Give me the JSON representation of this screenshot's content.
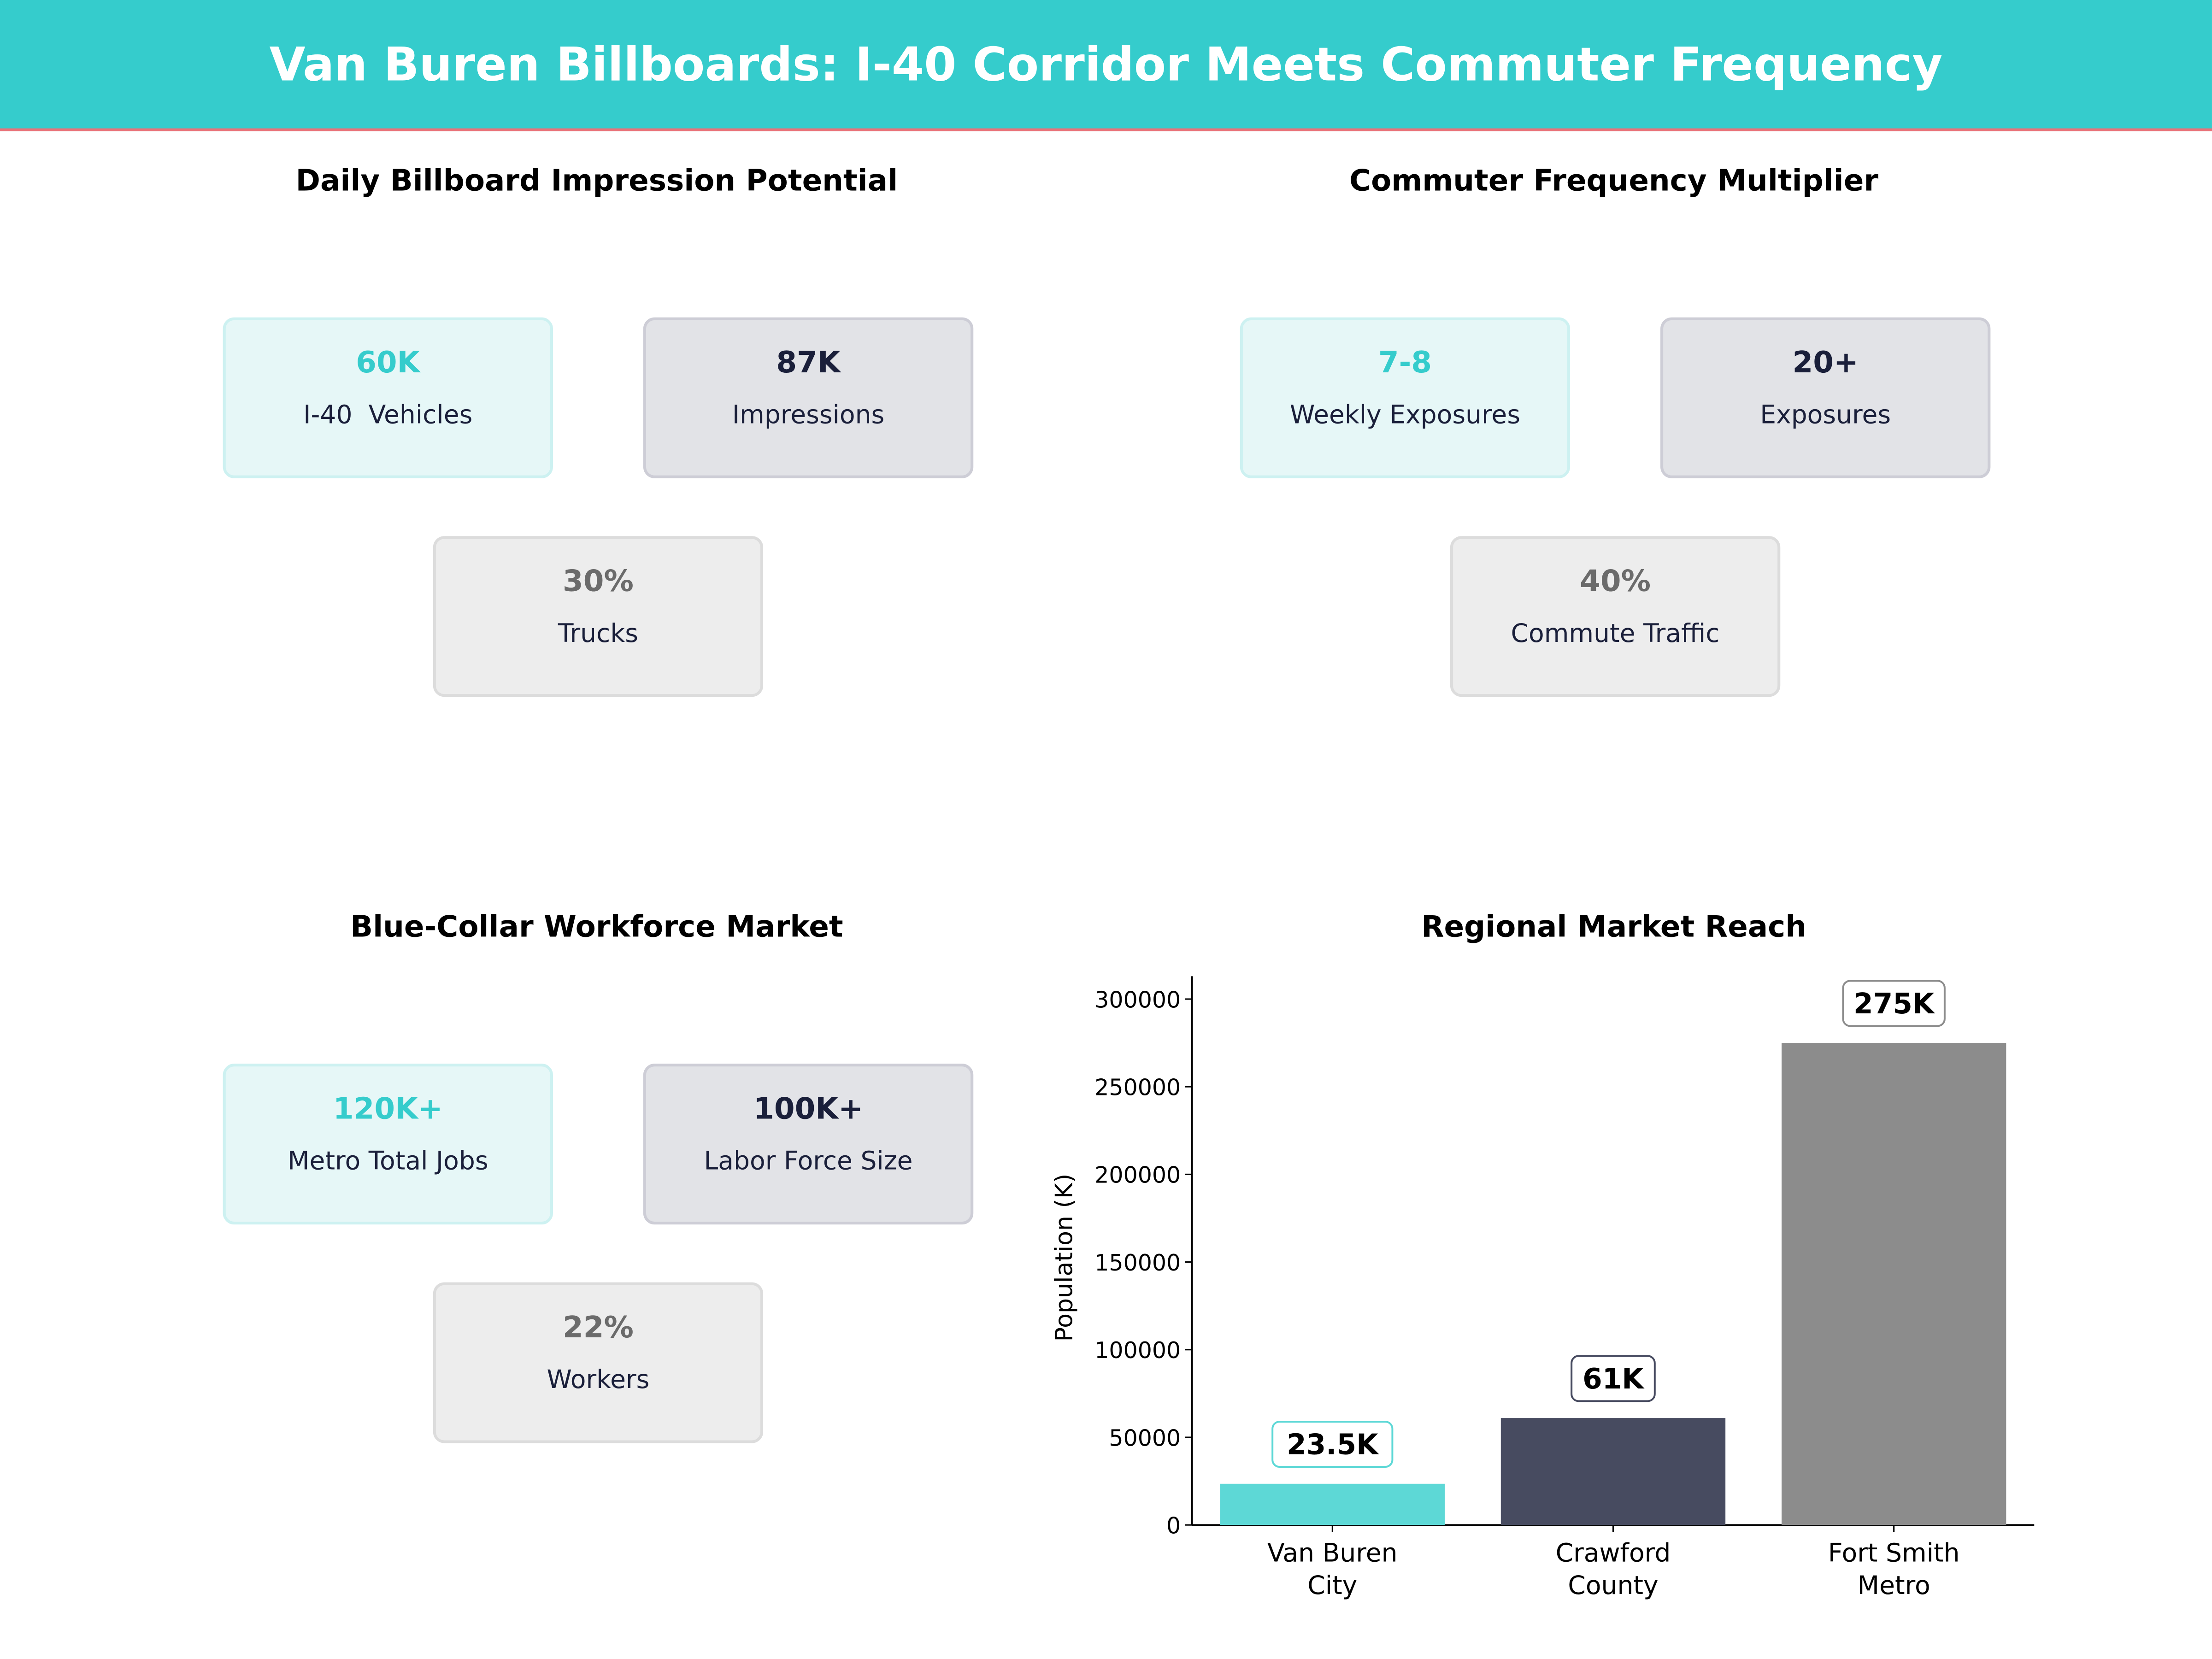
{
  "header": {
    "title": "Van Buren Billboards: I-40 Corridor Meets Commuter Frequency"
  },
  "panels": [
    {
      "title": "Daily Billboard Impression Potential",
      "cards": [
        {
          "value": "60K",
          "label": "I-40  Vehicles"
        },
        {
          "value": "87K",
          "label": "Impressions"
        },
        {
          "value": "30%",
          "label": "Trucks"
        }
      ]
    },
    {
      "title": "Commuter Frequency Multiplier",
      "cards": [
        {
          "value": "7-8",
          "label": "Weekly Exposures"
        },
        {
          "value": "20+",
          "label": "Exposures"
        },
        {
          "value": "40%",
          "label": "Commute Traffic"
        }
      ]
    },
    {
      "title": "Blue-Collar Workforce Market",
      "cards": [
        {
          "value": "120K+",
          "label": "Metro Total Jobs"
        },
        {
          "value": "100K+",
          "label": "Labor Force Size"
        },
        {
          "value": "22%",
          "label": "Workers"
        }
      ]
    }
  ],
  "card_colors": {
    "accent": "#35CCCC",
    "navy": "#1a1f3a",
    "gray": "#6b6b6b"
  },
  "chart_data": {
    "type": "bar",
    "title": "Regional Market Reach",
    "xlabel": "",
    "ylabel": "Population (K)",
    "categories": [
      "Van Buren\nCity",
      "Crawford\nCounty",
      "Fort Smith\nMetro"
    ],
    "values": [
      23500,
      61000,
      275000
    ],
    "data_labels": [
      "23.5K",
      "61K",
      "275K"
    ],
    "colors": [
      "#5DD8D6",
      "#474B60",
      "#8C8C8C"
    ],
    "ylim": [
      0,
      305000
    ],
    "yticks": [
      0,
      50000,
      100000,
      150000,
      200000,
      250000,
      300000
    ],
    "ytick_labels": [
      "0",
      "50000",
      "100000",
      "150000",
      "200000",
      "250000",
      "300000"
    ],
    "grid": false
  }
}
